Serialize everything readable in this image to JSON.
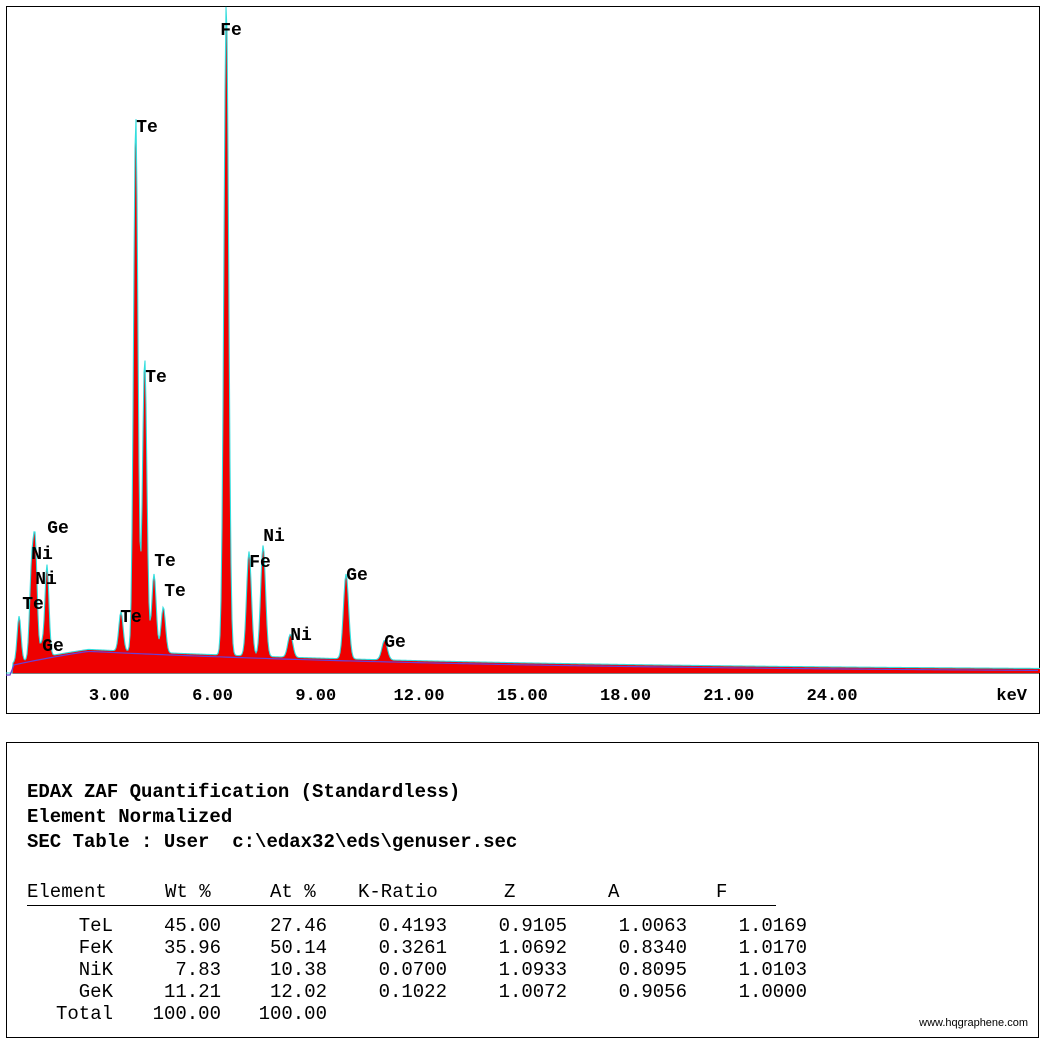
{
  "chart_data": {
    "type": "line",
    "xlabel": "keV",
    "xlim": [
      0,
      28.1
    ],
    "ticks": [
      "3.00",
      "6.00",
      "9.00",
      "12.00",
      "15.00",
      "18.00",
      "21.00",
      "24.00"
    ],
    "tick_values": [
      3,
      6,
      9,
      12,
      15,
      18,
      21,
      24
    ],
    "peaks": [
      {
        "label": "Fe",
        "energy": 6.4,
        "height": 1.0
      },
      {
        "label": "Te",
        "energy": 3.77,
        "height": 0.82
      },
      {
        "label": "Te",
        "energy": 4.03,
        "height": 0.45
      },
      {
        "label": "Ni",
        "energy": 7.47,
        "height": 0.17
      },
      {
        "label": "Fe",
        "energy": 7.06,
        "height": 0.16
      },
      {
        "label": "Ge",
        "energy": 9.88,
        "height": 0.13
      },
      {
        "label": "Te",
        "energy": 4.3,
        "height": 0.12
      },
      {
        "label": "Te",
        "energy": 4.57,
        "height": 0.07
      },
      {
        "label": "Te",
        "energy": 3.34,
        "height": 0.06
      },
      {
        "label": "Ge",
        "energy": 11.0,
        "height": 0.03
      },
      {
        "label": "Ni",
        "energy": 8.26,
        "height": 0.035
      },
      {
        "label": "Ge",
        "energy": 1.19,
        "height": 0.14
      },
      {
        "label": "Ni",
        "energy": 0.85,
        "height": 0.17
      },
      {
        "label": "Ni",
        "energy": 0.74,
        "height": 0.13
      },
      {
        "label": "Te",
        "energy": 0.38,
        "height": 0.07
      },
      {
        "label": "Ge",
        "energy": 1.04,
        "height": 0.02
      }
    ]
  },
  "quant": {
    "title": "EDAX ZAF Quantification (Standardless)",
    "subtitle": "Element Normalized",
    "sec_table": "SEC Table : User  c:\\edax32\\eds\\genuser.sec",
    "columns": [
      "Element",
      "Wt %",
      "At %",
      "K-Ratio",
      "Z",
      "A",
      "F"
    ],
    "rows": [
      {
        "element": "TeL",
        "wt": "45.00",
        "at": "27.46",
        "k": "0.4193",
        "z": "0.9105",
        "a": "1.0063",
        "f": "1.0169"
      },
      {
        "element": "FeK",
        "wt": "35.96",
        "at": "50.14",
        "k": "0.3261",
        "z": "1.0692",
        "a": "0.8340",
        "f": "1.0170"
      },
      {
        "element": "NiK",
        "wt": "7.83",
        "at": "10.38",
        "k": "0.0700",
        "z": "1.0933",
        "a": "0.8095",
        "f": "1.0103"
      },
      {
        "element": "GeK",
        "wt": "11.21",
        "at": "12.02",
        "k": "0.1022",
        "z": "1.0072",
        "a": "0.9056",
        "f": "1.0000"
      }
    ],
    "total": {
      "label": "Total",
      "wt": "100.00",
      "at": "100.00"
    }
  },
  "watermark": "www.hqgraphene.com",
  "colors": {
    "fill": "#ee0000",
    "outline": "#33dddd",
    "background_line": "#6a3fd6",
    "axis": "#000000"
  }
}
